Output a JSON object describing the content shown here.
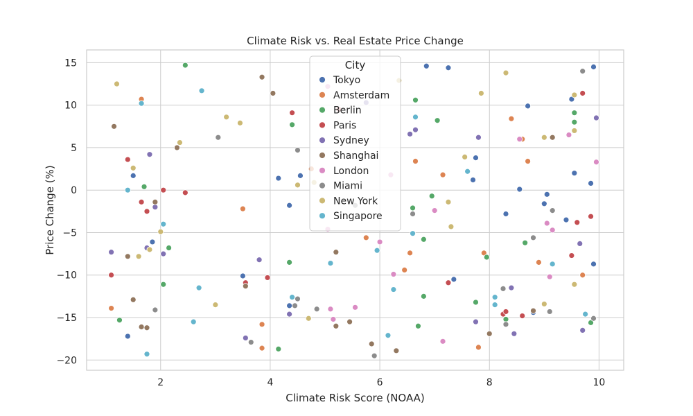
{
  "chart_data": {
    "type": "scatter",
    "title": "Climate Risk vs. Real Estate Price Change",
    "xlabel": "Climate Risk Score (NOAA)",
    "ylabel": "Price Change (%)",
    "xlim": [
      0.65,
      10.45
    ],
    "ylim": [
      -21.2,
      16.5
    ],
    "xticks": [
      2,
      4,
      6,
      8,
      10
    ],
    "yticks": [
      -20,
      -15,
      -10,
      -5,
      0,
      5,
      10,
      15
    ],
    "grid": true,
    "legend_title": "City",
    "legend_position": "upper-center",
    "series": [
      {
        "name": "Tokyo",
        "color": "#4c72b0",
        "x": [
          1.4,
          1.5,
          1.85,
          3.5,
          4.15,
          4.35,
          4.35,
          4.55,
          6.85,
          7.25,
          7.35,
          7.7,
          7.75,
          8.3,
          8.55,
          8.7,
          8.8,
          9.0,
          9.05,
          9.4,
          9.5,
          9.55,
          9.85,
          9.9,
          9.9
        ],
        "y": [
          -17.2,
          1.7,
          -6.1,
          -10.1,
          1.4,
          -13.6,
          -1.8,
          1.7,
          14.6,
          14.4,
          -10.5,
          1.2,
          3.8,
          -2.8,
          0.1,
          9.9,
          -14.4,
          -1.6,
          -0.5,
          -3.5,
          10.7,
          2.0,
          0.8,
          -8.7,
          14.5
        ]
      },
      {
        "name": "Amsterdam",
        "color": "#dd8452",
        "x": [
          1.1,
          1.65,
          3.5,
          3.85,
          3.85,
          4.75,
          5.75,
          6.45,
          6.55,
          6.65,
          7.15,
          7.8,
          7.9,
          8.4,
          8.6,
          8.7,
          8.9,
          9.7
        ],
        "y": [
          -13.9,
          10.7,
          -2.2,
          -15.8,
          -18.6,
          2.5,
          -5.6,
          -9.4,
          -7.4,
          3.4,
          1.8,
          -18.5,
          -7.4,
          8.4,
          6.0,
          3.4,
          -8.5,
          -10.0
        ]
      },
      {
        "name": "Berlin",
        "color": "#55a868",
        "x": [
          1.25,
          1.7,
          2.05,
          2.15,
          2.45,
          4.15,
          4.35,
          4.4,
          6.6,
          6.65,
          6.7,
          6.8,
          6.8,
          6.95,
          7.05,
          7.75,
          7.95,
          8.3,
          8.65,
          9.55,
          9.55,
          9.85
        ],
        "y": [
          -15.3,
          0.4,
          -11.1,
          -6.8,
          14.7,
          -18.7,
          -8.5,
          7.7,
          -2.1,
          10.6,
          -16.0,
          -12.5,
          -5.8,
          -0.7,
          8.2,
          -13.2,
          -7.9,
          -15.2,
          -6.2,
          8.0,
          9.1,
          -15.6
        ]
      },
      {
        "name": "Paris",
        "color": "#c44e52",
        "x": [
          1.1,
          1.4,
          1.65,
          1.75,
          2.05,
          2.45,
          3.55,
          3.95,
          4.4,
          5.25,
          7.25,
          8.25,
          8.3,
          8.6,
          9.5,
          9.6,
          9.7,
          9.85
        ],
        "y": [
          -10.0,
          3.6,
          -1.4,
          -2.5,
          0.0,
          -0.3,
          -10.9,
          -10.3,
          9.1,
          9.5,
          -10.9,
          -14.6,
          -14.3,
          -14.8,
          -7.7,
          -3.8,
          11.4,
          -3.1
        ]
      },
      {
        "name": "Sydney",
        "color": "#8172b3",
        "x": [
          1.1,
          1.75,
          1.8,
          1.9,
          2.05,
          3.55,
          3.8,
          4.35,
          5.75,
          6.55,
          6.65,
          7.75,
          7.8,
          8.4,
          8.45,
          9.65,
          9.7,
          9.95
        ],
        "y": [
          -7.3,
          -6.8,
          4.2,
          -2.0,
          -7.5,
          -17.4,
          -8.2,
          -14.6,
          10.3,
          6.6,
          7.1,
          -15.5,
          6.2,
          -11.5,
          -16.9,
          -6.3,
          -16.5,
          8.5
        ]
      },
      {
        "name": "Shanghai",
        "color": "#937860",
        "x": [
          1.15,
          1.2,
          1.4,
          1.5,
          1.65,
          1.75,
          1.9,
          2.3,
          3.55,
          3.85,
          4.05,
          5.2,
          5.2,
          5.45,
          5.85,
          6.3,
          8.0,
          8.8,
          9.15
        ],
        "y": [
          7.5,
          12.5,
          -7.8,
          -12.9,
          -16.1,
          -16.2,
          -1.4,
          5.0,
          -11.3,
          13.3,
          11.4,
          -16.0,
          -7.3,
          -15.5,
          -18.1,
          -18.9,
          -16.9,
          -14.2,
          6.2
        ]
      },
      {
        "name": "London",
        "color": "#da8bc3",
        "x": [
          5.05,
          5.05,
          5.1,
          5.15,
          5.55,
          6.0,
          6.2,
          6.25,
          7.0,
          7.15,
          8.55,
          9.05,
          9.1,
          9.15,
          9.45,
          9.95
        ],
        "y": [
          12.2,
          -4.6,
          -14.0,
          -15.2,
          -13.8,
          -6.1,
          1.8,
          -9.9,
          -2.4,
          -17.8,
          6.0,
          -3.9,
          -10.2,
          -4.7,
          6.5,
          3.3
        ]
      },
      {
        "name": "Miami",
        "color": "#8c8c8c",
        "x": [
          1.9,
          3.05,
          3.65,
          4.45,
          4.5,
          4.5,
          4.85,
          5.55,
          5.9,
          6.6,
          8.25,
          8.3,
          8.8,
          9.1,
          9.15,
          9.7,
          9.9
        ],
        "y": [
          -14.1,
          6.2,
          -17.9,
          -13.6,
          -12.8,
          4.7,
          -14.0,
          -1.8,
          -19.5,
          -2.8,
          -11.6,
          -15.8,
          -5.6,
          -14.3,
          -2.4,
          14.0,
          -15.1
        ]
      },
      {
        "name": "New York",
        "color": "#ccb974",
        "x": [
          1.2,
          1.5,
          1.6,
          1.8,
          2.0,
          2.35,
          3.0,
          3.2,
          3.45,
          4.5,
          4.7,
          4.8,
          6.35,
          7.25,
          7.3,
          7.55,
          7.85,
          8.3,
          9.0,
          9.0,
          9.55,
          9.55,
          9.55
        ],
        "y": [
          12.5,
          2.6,
          -7.8,
          -7.0,
          -4.9,
          5.6,
          -13.5,
          8.6,
          7.9,
          0.6,
          -15.1,
          0.9,
          12.9,
          -1.4,
          -4.3,
          3.9,
          11.4,
          13.8,
          6.2,
          -13.4,
          11.2,
          7.0,
          -11.1
        ]
      },
      {
        "name": "Singapore",
        "color": "#64b5cd",
        "x": [
          1.4,
          1.65,
          1.75,
          2.05,
          2.6,
          2.7,
          2.75,
          4.4,
          5.1,
          5.95,
          6.15,
          6.25,
          6.6,
          6.65,
          7.6,
          8.1,
          8.1,
          9.15,
          9.75
        ],
        "y": [
          0.0,
          10.2,
          -19.3,
          -4.0,
          -15.5,
          -11.5,
          11.7,
          -12.6,
          -8.6,
          -7.1,
          -17.1,
          -11.7,
          -5.1,
          8.6,
          2.2,
          -12.6,
          -13.5,
          -8.7,
          -14.6
        ]
      }
    ]
  }
}
